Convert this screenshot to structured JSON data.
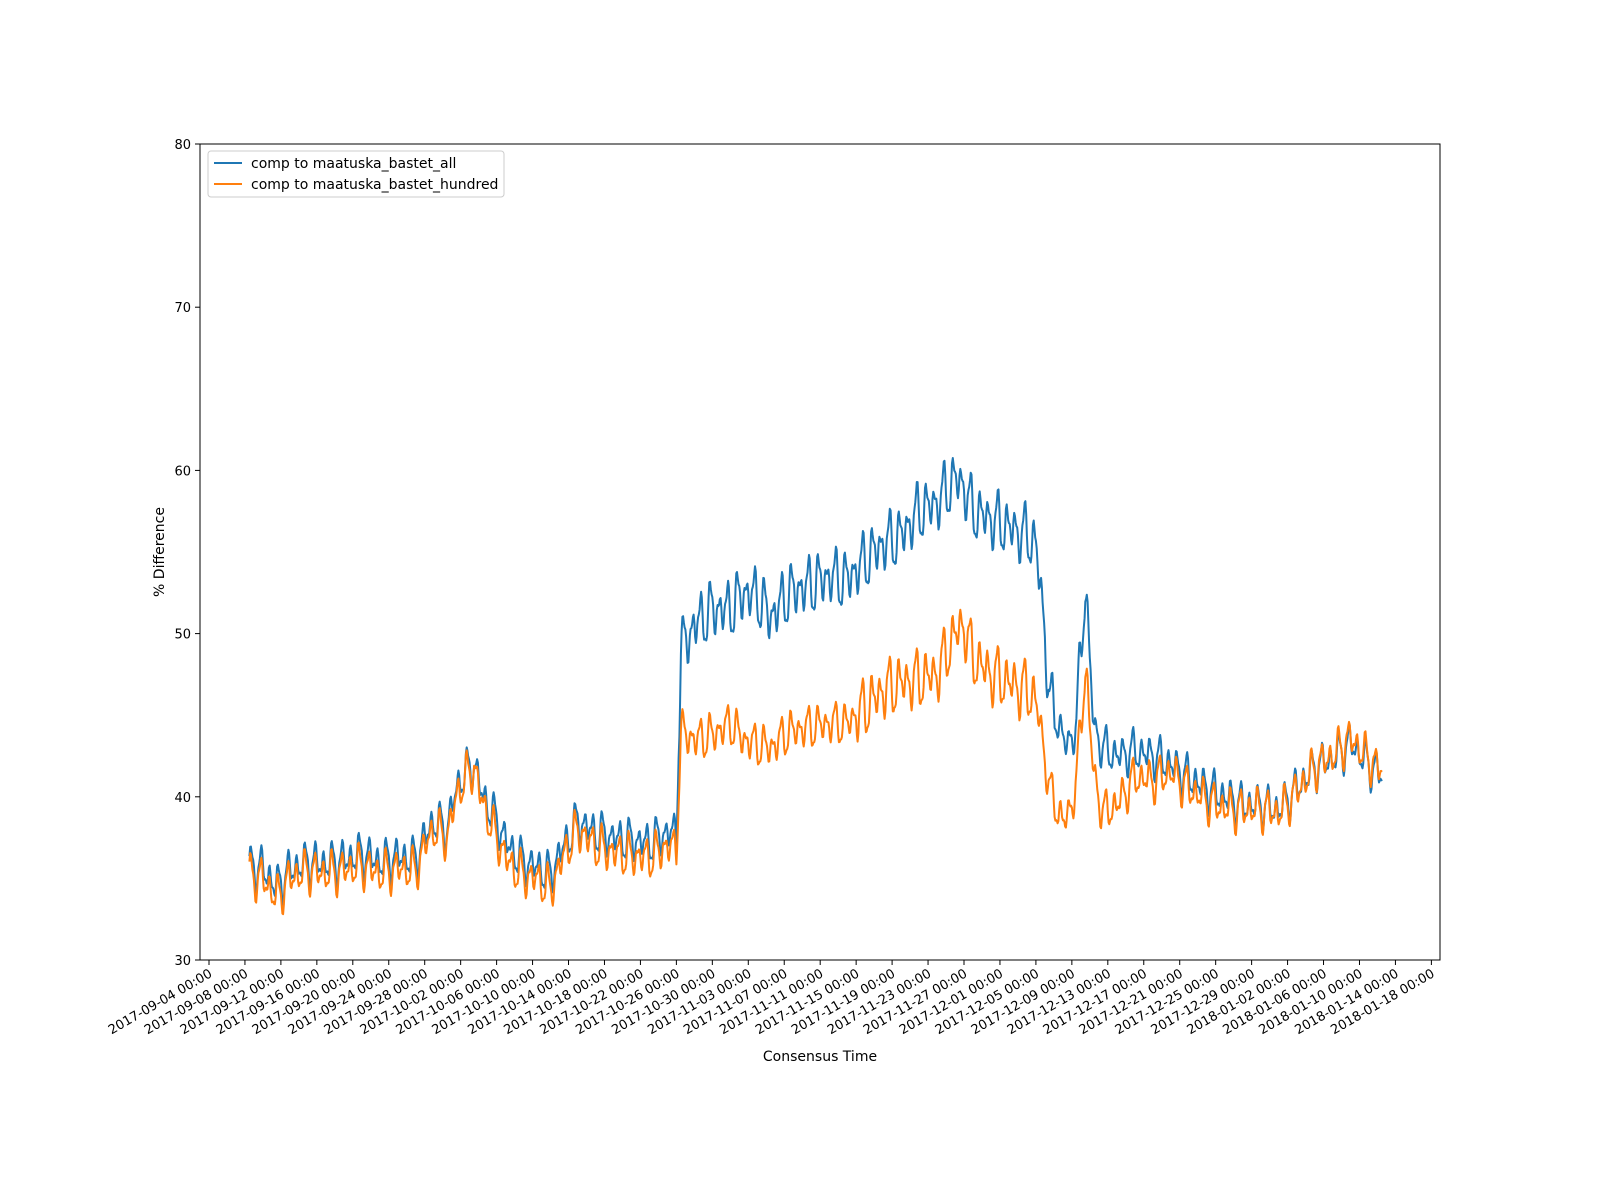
{
  "chart_data": {
    "type": "line",
    "title": "",
    "xlabel": "Consensus Time",
    "ylabel": "% Difference",
    "xlim": [
      "2017-09-03 00:00",
      "2018-01-18 23:00"
    ],
    "ylim": [
      30,
      80
    ],
    "yticks": [
      30,
      40,
      50,
      60,
      70,
      80
    ],
    "xticks": [
      "2017-09-04 00:00",
      "2017-09-08 00:00",
      "2017-09-12 00:00",
      "2017-09-16 00:00",
      "2017-09-20 00:00",
      "2017-09-24 00:00",
      "2017-09-28 00:00",
      "2017-10-02 00:00",
      "2017-10-06 00:00",
      "2017-10-10 00:00",
      "2017-10-14 00:00",
      "2017-10-18 00:00",
      "2017-10-22 00:00",
      "2017-10-26 00:00",
      "2017-10-30 00:00",
      "2017-11-03 00:00",
      "2017-11-07 00:00",
      "2017-11-11 00:00",
      "2017-11-15 00:00",
      "2017-11-19 00:00",
      "2017-11-23 00:00",
      "2017-11-27 00:00",
      "2017-12-01 00:00",
      "2017-12-05 00:00",
      "2017-12-09 00:00",
      "2017-12-13 00:00",
      "2017-12-17 00:00",
      "2017-12-21 00:00",
      "2017-12-25 00:00",
      "2017-12-29 00:00",
      "2018-01-02 00:00",
      "2018-01-06 00:00",
      "2018-01-10 00:00",
      "2018-01-14 00:00",
      "2018-01-18 00:00"
    ],
    "grid": false,
    "legend_position": "top-left",
    "series": [
      {
        "name": "comp to maatuska_bastet_all",
        "color": "#1f77b4",
        "points": [
          [
            "2017-09-08 12:00",
            35.8
          ],
          [
            "2017-09-10 00:00",
            35.6
          ],
          [
            "2017-09-11 12:00",
            34.5
          ],
          [
            "2017-09-13 00:00",
            35.5
          ],
          [
            "2017-09-15 00:00",
            36.0
          ],
          [
            "2017-09-17 00:00",
            35.9
          ],
          [
            "2017-09-19 00:00",
            36.1
          ],
          [
            "2017-09-21 00:00",
            36.5
          ],
          [
            "2017-09-23 00:00",
            36.0
          ],
          [
            "2017-09-25 00:00",
            36.3
          ],
          [
            "2017-09-27 00:00",
            36.2
          ],
          [
            "2017-09-28 00:00",
            37.5
          ],
          [
            "2017-09-29 00:00",
            38.5
          ],
          [
            "2017-09-30 12:00",
            38.0
          ],
          [
            "2017-10-01 12:00",
            40.5
          ],
          [
            "2017-10-02 12:00",
            41.5
          ],
          [
            "2017-10-03 12:00",
            42.0
          ],
          [
            "2017-10-04 12:00",
            40.0
          ],
          [
            "2017-10-06 00:00",
            38.5
          ],
          [
            "2017-10-07 12:00",
            36.8
          ],
          [
            "2017-10-09 00:00",
            36.0
          ],
          [
            "2017-10-10 12:00",
            35.7
          ],
          [
            "2017-10-12 00:00",
            35.2
          ],
          [
            "2017-10-13 00:00",
            36.5
          ],
          [
            "2017-10-14 00:00",
            37.5
          ],
          [
            "2017-10-15 00:00",
            38.5
          ],
          [
            "2017-10-17 00:00",
            37.8
          ],
          [
            "2017-10-19 00:00",
            37.5
          ],
          [
            "2017-10-21 00:00",
            37.3
          ],
          [
            "2017-10-23 00:00",
            37.2
          ],
          [
            "2017-10-25 00:00",
            37.8
          ],
          [
            "2017-10-26 00:00",
            37.8
          ],
          [
            "2017-10-26 12:00",
            49.0
          ],
          [
            "2017-10-28 00:00",
            50.5
          ],
          [
            "2017-10-30 00:00",
            51.5
          ],
          [
            "2017-11-01 00:00",
            51.5
          ],
          [
            "2017-11-02 12:00",
            52.5
          ],
          [
            "2017-11-04 00:00",
            52.3
          ],
          [
            "2017-11-05 12:00",
            51.0
          ],
          [
            "2017-11-07 12:00",
            52.5
          ],
          [
            "2017-11-10 00:00",
            53.0
          ],
          [
            "2017-11-12 00:00",
            53.5
          ],
          [
            "2017-11-14 00:00",
            53.3
          ],
          [
            "2017-11-16 00:00",
            54.5
          ],
          [
            "2017-11-18 00:00",
            55.5
          ],
          [
            "2017-11-20 00:00",
            56.0
          ],
          [
            "2017-11-22 00:00",
            57.5
          ],
          [
            "2017-11-24 00:00",
            58.0
          ],
          [
            "2017-11-26 00:00",
            59.5
          ],
          [
            "2017-11-27 00:00",
            59.0
          ],
          [
            "2017-11-28 00:00",
            57.5
          ],
          [
            "2017-11-30 00:00",
            57.0
          ],
          [
            "2017-12-02 00:00",
            56.5
          ],
          [
            "2017-12-04 00:00",
            56.0
          ],
          [
            "2017-12-05 00:00",
            55.5
          ],
          [
            "2017-12-06 00:00",
            50.0
          ],
          [
            "2017-12-06 12:00",
            46.0
          ],
          [
            "2017-12-07 12:00",
            44.5
          ],
          [
            "2017-12-08 12:00",
            43.0
          ],
          [
            "2017-12-09 12:00",
            44.5
          ],
          [
            "2017-12-10 12:00",
            53.0
          ],
          [
            "2017-12-11 12:00",
            44.0
          ],
          [
            "2017-12-12 12:00",
            43.0
          ],
          [
            "2017-12-14 00:00",
            42.5
          ],
          [
            "2017-12-16 00:00",
            42.8
          ],
          [
            "2017-12-18 00:00",
            42.5
          ],
          [
            "2017-12-20 00:00",
            42.0
          ],
          [
            "2017-12-22 00:00",
            41.2
          ],
          [
            "2017-12-24 00:00",
            40.5
          ],
          [
            "2017-12-26 00:00",
            40.0
          ],
          [
            "2017-12-28 00:00",
            39.5
          ],
          [
            "2017-12-30 00:00",
            39.5
          ],
          [
            "2018-01-01 00:00",
            39.2
          ],
          [
            "2018-01-03 00:00",
            40.5
          ],
          [
            "2018-01-05 00:00",
            41.8
          ],
          [
            "2018-01-07 00:00",
            42.3
          ],
          [
            "2018-01-09 00:00",
            43.3
          ],
          [
            "2018-01-11 00:00",
            42.0
          ],
          [
            "2018-01-12 12:00",
            41.3
          ]
        ]
      },
      {
        "name": "comp to maatuska_bastet_hundred",
        "color": "#ff7f0e",
        "points": [
          [
            "2017-09-08 12:00",
            35.2
          ],
          [
            "2017-09-10 00:00",
            35.0
          ],
          [
            "2017-09-11 12:00",
            33.8
          ],
          [
            "2017-09-13 00:00",
            35.0
          ],
          [
            "2017-09-15 00:00",
            35.5
          ],
          [
            "2017-09-17 00:00",
            35.3
          ],
          [
            "2017-09-19 00:00",
            35.5
          ],
          [
            "2017-09-21 00:00",
            35.8
          ],
          [
            "2017-09-23 00:00",
            35.3
          ],
          [
            "2017-09-25 00:00",
            35.6
          ],
          [
            "2017-09-27 00:00",
            35.5
          ],
          [
            "2017-09-28 00:00",
            37.0
          ],
          [
            "2017-09-29 00:00",
            38.0
          ],
          [
            "2017-09-30 12:00",
            37.5
          ],
          [
            "2017-10-01 12:00",
            40.0
          ],
          [
            "2017-10-02 12:00",
            41.2
          ],
          [
            "2017-10-03 12:00",
            41.8
          ],
          [
            "2017-10-04 12:00",
            39.5
          ],
          [
            "2017-10-06 00:00",
            37.5
          ],
          [
            "2017-10-07 12:00",
            35.8
          ],
          [
            "2017-10-09 00:00",
            35.2
          ],
          [
            "2017-10-10 12:00",
            35.0
          ],
          [
            "2017-10-12 00:00",
            34.3
          ],
          [
            "2017-10-13 00:00",
            35.8
          ],
          [
            "2017-10-14 00:00",
            37.0
          ],
          [
            "2017-10-15 00:00",
            38.0
          ],
          [
            "2017-10-17 00:00",
            37.0
          ],
          [
            "2017-10-19 00:00",
            36.6
          ],
          [
            "2017-10-21 00:00",
            36.4
          ],
          [
            "2017-10-23 00:00",
            36.3
          ],
          [
            "2017-10-25 00:00",
            37.0
          ],
          [
            "2017-10-26 00:00",
            36.8
          ],
          [
            "2017-10-26 12:00",
            44.0
          ],
          [
            "2017-10-28 00:00",
            43.5
          ],
          [
            "2017-10-30 00:00",
            43.8
          ],
          [
            "2017-11-01 00:00",
            44.5
          ],
          [
            "2017-11-02 12:00",
            43.5
          ],
          [
            "2017-11-04 00:00",
            43.2
          ],
          [
            "2017-11-05 12:00",
            43.0
          ],
          [
            "2017-11-07 12:00",
            44.0
          ],
          [
            "2017-11-10 00:00",
            44.3
          ],
          [
            "2017-11-12 00:00",
            44.5
          ],
          [
            "2017-11-14 00:00",
            44.5
          ],
          [
            "2017-11-16 00:00",
            45.5
          ],
          [
            "2017-11-18 00:00",
            46.5
          ],
          [
            "2017-11-20 00:00",
            47.0
          ],
          [
            "2017-11-22 00:00",
            47.2
          ],
          [
            "2017-11-24 00:00",
            47.5
          ],
          [
            "2017-11-26 00:00",
            50.0
          ],
          [
            "2017-11-27 00:00",
            50.5
          ],
          [
            "2017-11-28 00:00",
            48.5
          ],
          [
            "2017-11-30 00:00",
            47.5
          ],
          [
            "2017-12-02 00:00",
            47.0
          ],
          [
            "2017-12-04 00:00",
            46.5
          ],
          [
            "2017-12-05 00:00",
            46.0
          ],
          [
            "2017-12-06 00:00",
            42.5
          ],
          [
            "2017-12-06 12:00",
            40.5
          ],
          [
            "2017-12-07 12:00",
            39.0
          ],
          [
            "2017-12-08 12:00",
            38.5
          ],
          [
            "2017-12-09 12:00",
            41.0
          ],
          [
            "2017-12-10 12:00",
            48.0
          ],
          [
            "2017-12-11 12:00",
            41.0
          ],
          [
            "2017-12-12 12:00",
            39.0
          ],
          [
            "2017-12-14 00:00",
            39.5
          ],
          [
            "2017-12-16 00:00",
            41.2
          ],
          [
            "2017-12-18 00:00",
            41.0
          ],
          [
            "2017-12-20 00:00",
            41.5
          ],
          [
            "2017-12-22 00:00",
            40.5
          ],
          [
            "2017-12-24 00:00",
            39.8
          ],
          [
            "2017-12-26 00:00",
            39.3
          ],
          [
            "2017-12-28 00:00",
            39.2
          ],
          [
            "2017-12-30 00:00",
            39.3
          ],
          [
            "2018-01-01 00:00",
            39.0
          ],
          [
            "2018-01-03 00:00",
            40.3
          ],
          [
            "2018-01-05 00:00",
            41.8
          ],
          [
            "2018-01-07 00:00",
            42.5
          ],
          [
            "2018-01-09 00:00",
            43.6
          ],
          [
            "2018-01-11 00:00",
            42.3
          ],
          [
            "2018-01-12 12:00",
            41.6
          ]
        ]
      }
    ]
  }
}
